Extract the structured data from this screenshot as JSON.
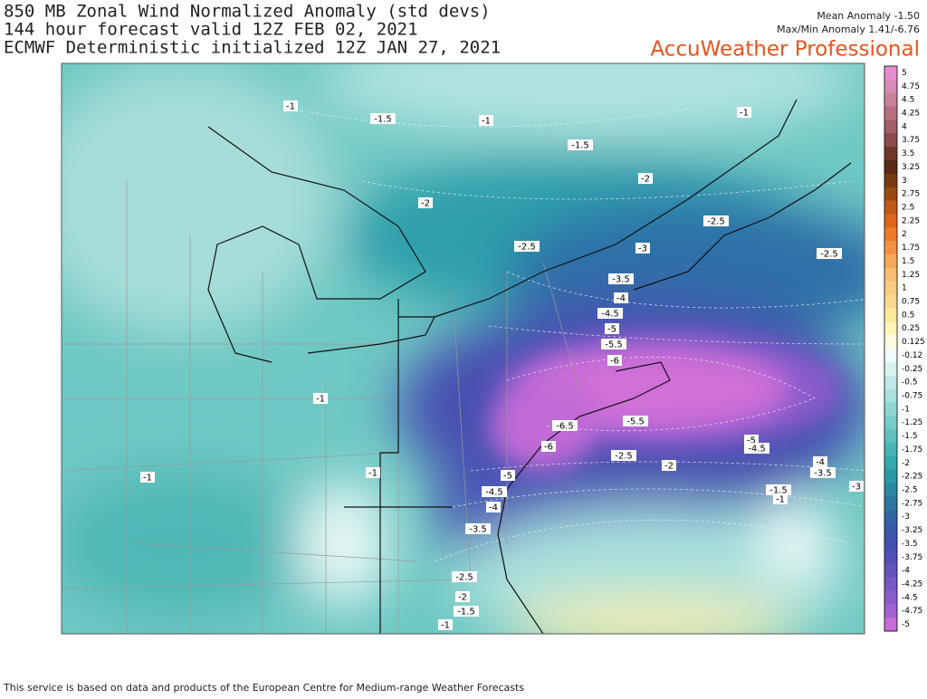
{
  "header": {
    "lines": [
      "850 MB Zonal Wind Normalized Anomaly (std devs)",
      "144 hour forecast valid 12Z FEB 02, 2021",
      "ECMWF Deterministic initialized 12Z JAN 27, 2021"
    ],
    "mean_anomaly": "Mean Anomaly -1.50",
    "maxmin_anomaly": "Max/Min Anomaly 1.41/-6.76",
    "brand": "AccuWeather Professional"
  },
  "colorbar": {
    "labels": [
      "5",
      "4.75",
      "4.5",
      "4.25",
      "4",
      "3.75",
      "3.5",
      "3.25",
      "3",
      "2.75",
      "2.5",
      "2.25",
      "2",
      "1.75",
      "1.5",
      "1.25",
      "1",
      "0.75",
      "0.5",
      "0.25",
      "0.125",
      "-0.12",
      "-0.25",
      "-0.5",
      "-0.75",
      "-1",
      "-1.25",
      "-1.5",
      "-1.75",
      "-2",
      "-2.25",
      "-2.5",
      "-2.75",
      "-3",
      "-3.25",
      "-3.5",
      "-3.75",
      "-4",
      "-4.25",
      "-4.5",
      "-4.75",
      "-5"
    ],
    "colors": [
      "#e88ed0",
      "#d98ab8",
      "#c98096",
      "#b8707e",
      "#a45c66",
      "#8c4a4c",
      "#6e3828",
      "#5a2a14",
      "#7a3a10",
      "#9a4a10",
      "#c05a14",
      "#e0661a",
      "#f07a28",
      "#f49040",
      "#f6a858",
      "#f8bc70",
      "#f8cc80",
      "#f8d88c",
      "#faea98",
      "#fcf4b4",
      "#fefce0",
      "#f0fafa",
      "#d8f2f0",
      "#bfe9e6",
      "#a8e0dc",
      "#8ed6d2",
      "#78ccc8",
      "#5ec1bf",
      "#46b5b6",
      "#30a8ad",
      "#2899a6",
      "#2a88a2",
      "#2c77a0",
      "#3066a4",
      "#3858aa",
      "#4450b0",
      "#5250b8",
      "#6452bc",
      "#7658c4",
      "#8a5ccc",
      "#a262d4",
      "#c86ad8"
    ]
  },
  "contour_labels": [
    "-1",
    "-1.5",
    "-1",
    "-1",
    "-1.5",
    "-2",
    "-2",
    "-2.5",
    "-2.5",
    "-3",
    "-2.5",
    "-3.5",
    "-4",
    "-4.5",
    "-5",
    "-5.5",
    "-6",
    "-1",
    "-5.5",
    "-6.5",
    "-5",
    "-4.5",
    "-6",
    "-2.5",
    "-2",
    "-4",
    "-3.5",
    "-3",
    "-1",
    "-1",
    "-5",
    "-4.5",
    "-4",
    "-1.5",
    "-1",
    "-3.5",
    "-2.5",
    "-2",
    "-1.5",
    "-1"
  ],
  "footer": "This service is based on data and products of the European Centre for Medium-range Weather Forecasts"
}
